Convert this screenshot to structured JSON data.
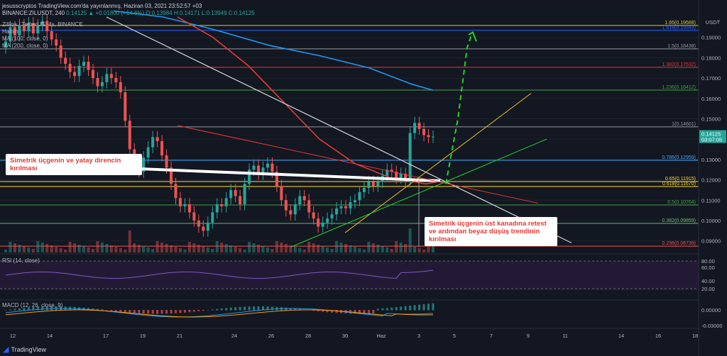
{
  "header": {
    "publisher": "jesusscryptos TradingView.com'da yayınlanmış, Haziran 03, 2021 23:52:57 +03",
    "symbol_line": "BINANCE:ZILUSDT, 240",
    "ohlc": "0.14125 ▲ +0.01800 (+14.6%) O:0.13984 H:0.14171 L:0.13949 C:0.14125",
    "legend_title": "Zilliqa / TetherUS, 4s, BINANCE",
    "legend_volume": "Hacim",
    "legend_ma100": "MA (100, close, 0)",
    "legend_ma200": "MA (200, close, 0)",
    "rsi_label": "RSI (14, close)",
    "macd_label": "MACD (12, 26, close, 9)",
    "tradingview": "TradingView",
    "currency": "USDT",
    "price_tag": "0.14125",
    "price_time": "03:07:05"
  },
  "annotations": {
    "left": "Simetrik üçgenin ve yatay direncin kırılması",
    "right": "Simetrik üçgenin üst kanadına retest ve ardından beyaz düşüş trendinin kırılması"
  },
  "colors": {
    "background": "#131722",
    "up": "#26a69a",
    "down": "#ef5350",
    "ma100": "#e53935",
    "ma200": "#2196f3",
    "rsi": "#7e57c2",
    "accent_green": "#22d32a"
  },
  "chart_data": {
    "type": "candlestick",
    "y_ticks": [
      "0.19000",
      "0.18000",
      "0.17000",
      "0.16000",
      "0.15000",
      "0.14000",
      "0.13000",
      "0.12000",
      "0.11000",
      "0.10000",
      "0.09000"
    ],
    "x_ticks": [
      "12",
      "14",
      "17",
      "19",
      "21",
      "24",
      "26",
      "28",
      "30",
      "Haz",
      "3",
      "5",
      "7",
      "9",
      "11",
      "14",
      "16",
      "18"
    ],
    "fib_levels": [
      {
        "label": "1.65(0.19588)",
        "value": 0.19588,
        "color": "#d9c83a"
      },
      {
        "label": "1.618(0.19343)",
        "value": 0.19343,
        "color": "#2962ff"
      },
      {
        "label": "1.5(0.18438)",
        "value": 0.18438,
        "color": "#9598a1"
      },
      {
        "label": "1.382(0.17532)",
        "value": 0.17532,
        "color": "#e53935"
      },
      {
        "label": "1.236(0.16412)",
        "value": 0.16412,
        "color": "#43a047"
      },
      {
        "label": "1(0.14601)",
        "value": 0.14601,
        "color": "#9598a1"
      },
      {
        "label": "0.786(0.12959)",
        "value": 0.12959,
        "color": "#42a5f5"
      },
      {
        "label": "0.65(0.11915)",
        "value": 0.11915,
        "color": "#fdd835"
      },
      {
        "label": "0.618(0.11670)",
        "value": 0.1167,
        "color": "#fdd835"
      },
      {
        "label": "0.5(0.10764)",
        "value": 0.10764,
        "color": "#43a047"
      },
      {
        "label": "0.382(0.09859)",
        "value": 0.09859,
        "color": "#66bb6a"
      },
      {
        "label": "0.236(0.08739)",
        "value": 0.08739,
        "color": "#ef5350"
      }
    ],
    "rsi_ticks": [
      "80.00",
      "60.00",
      "40.00",
      "20.00"
    ],
    "macd_ticks": [
      "0.00000",
      "-0.03000"
    ],
    "candles": [
      0.188,
      0.195,
      0.191,
      0.196,
      0.193,
      0.197,
      0.192,
      0.196,
      0.198,
      0.193,
      0.189,
      0.186,
      0.18,
      0.177,
      0.173,
      0.171,
      0.176,
      0.178,
      0.174,
      0.17,
      0.166,
      0.168,
      0.172,
      0.17,
      0.168,
      0.163,
      0.149,
      0.135,
      0.128,
      0.124,
      0.131,
      0.136,
      0.141,
      0.139,
      0.132,
      0.126,
      0.118,
      0.111,
      0.107,
      0.108,
      0.104,
      0.1,
      0.097,
      0.095,
      0.099,
      0.104,
      0.108,
      0.107,
      0.111,
      0.115,
      0.112,
      0.108,
      0.118,
      0.125,
      0.127,
      0.123,
      0.126,
      0.128,
      0.124,
      0.117,
      0.11,
      0.105,
      0.103,
      0.108,
      0.112,
      0.11,
      0.104,
      0.101,
      0.097,
      0.099,
      0.101,
      0.103,
      0.106,
      0.107,
      0.106,
      0.109,
      0.11,
      0.114,
      0.116,
      0.119,
      0.117,
      0.119,
      0.122,
      0.125,
      0.124,
      0.121,
      0.123,
      0.12,
      0.143,
      0.148,
      0.145,
      0.142,
      0.141,
      0.14125
    ]
  }
}
